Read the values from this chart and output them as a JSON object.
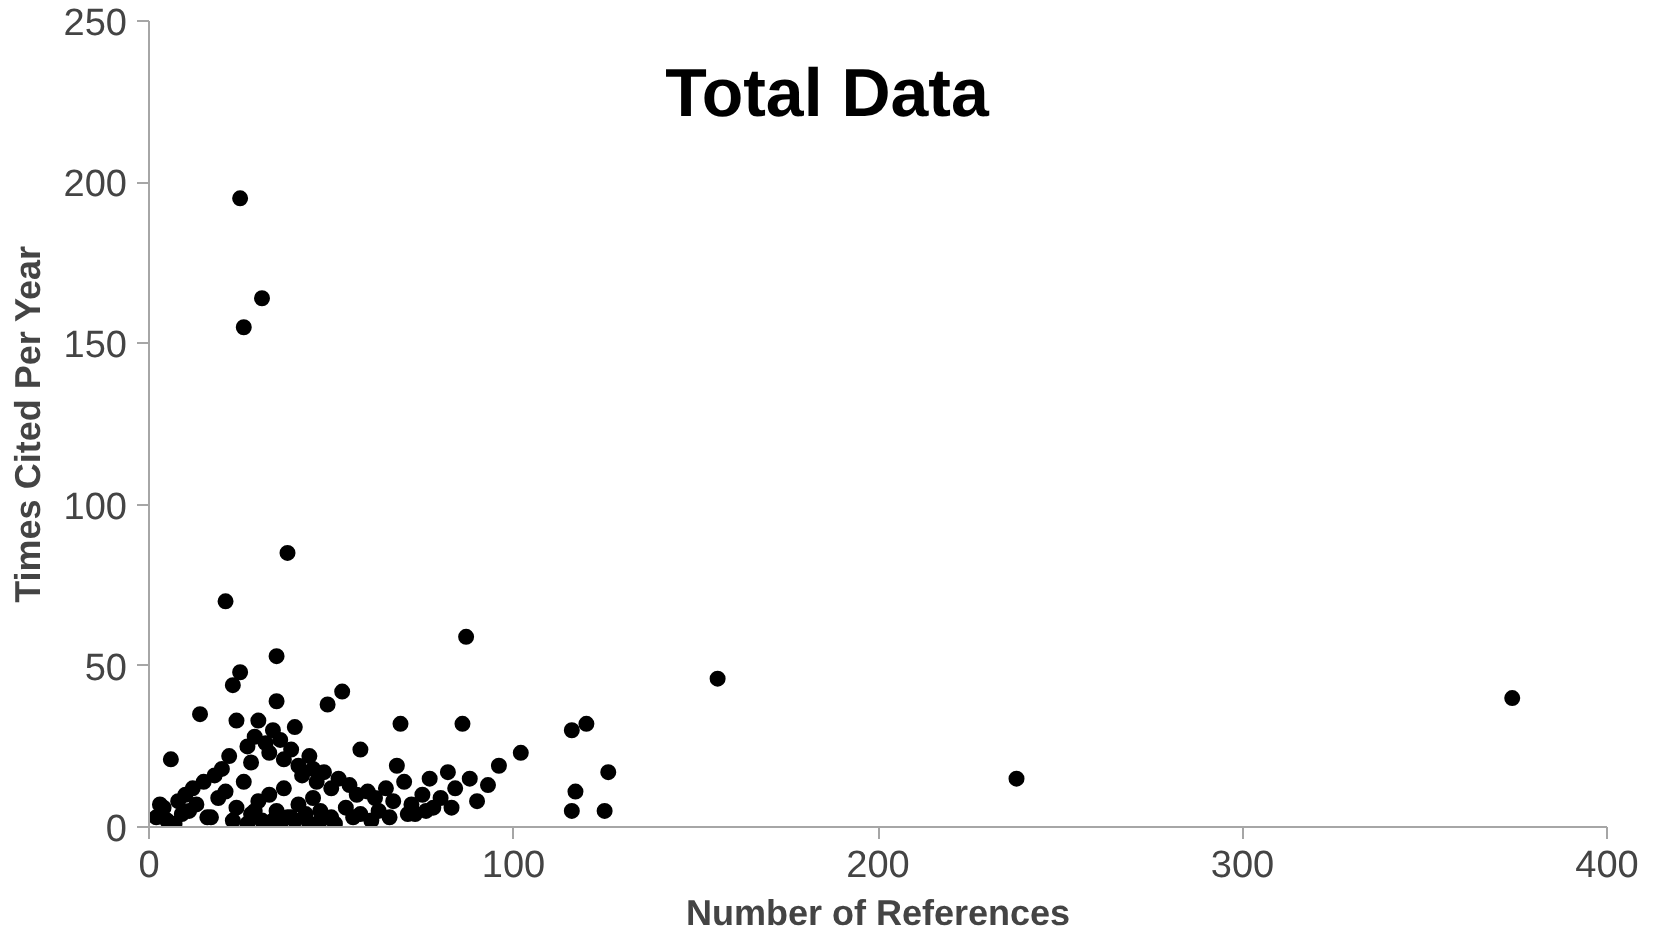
{
  "chart_data": {
    "type": "scatter",
    "title": "Total Data",
    "xlabel": "Number of References",
    "ylabel": "Times Cited Per Year",
    "x": [
      25,
      31,
      26,
      38,
      21,
      87,
      35,
      25,
      53,
      49,
      69,
      86,
      156,
      374,
      238,
      102,
      96,
      116,
      120,
      126,
      117,
      116,
      125,
      6,
      14,
      23,
      24,
      30,
      35,
      40,
      58,
      68,
      77,
      82,
      88,
      2,
      4,
      8,
      10,
      12,
      15,
      18,
      20,
      22,
      27,
      28,
      29,
      32,
      33,
      34,
      36,
      37,
      39,
      41,
      42,
      44,
      45,
      46,
      48,
      50,
      52,
      55,
      57,
      60,
      62,
      65,
      67,
      70,
      72,
      75,
      78,
      80,
      84,
      90,
      93,
      5,
      9,
      11,
      13,
      16,
      19,
      21,
      24,
      26,
      28,
      30,
      31,
      33,
      35,
      37,
      39,
      41,
      43,
      45,
      47,
      50,
      54,
      58,
      63,
      66,
      71,
      76,
      83,
      3,
      7,
      17,
      23,
      27,
      29,
      34,
      36,
      38,
      40,
      44,
      47,
      51,
      56,
      61,
      73
    ],
    "values": [
      195,
      164,
      155,
      85,
      70,
      59,
      53,
      48,
      42,
      38,
      32,
      32,
      46,
      40,
      15,
      23,
      19,
      30,
      32,
      17,
      11,
      5,
      5,
      21,
      35,
      44,
      33,
      33,
      39,
      31,
      24,
      19,
      15,
      17,
      15,
      3,
      6,
      8,
      10,
      12,
      14,
      16,
      18,
      22,
      25,
      20,
      28,
      26,
      23,
      30,
      27,
      21,
      24,
      19,
      16,
      22,
      18,
      14,
      17,
      12,
      15,
      13,
      10,
      11,
      9,
      12,
      8,
      14,
      7,
      10,
      6,
      9,
      12,
      8,
      13,
      2,
      4,
      5,
      7,
      3,
      9,
      11,
      6,
      14,
      4,
      8,
      2,
      10,
      5,
      12,
      3,
      7,
      4,
      9,
      5,
      3,
      6,
      4,
      5,
      3,
      4,
      5,
      6,
      7,
      1,
      3,
      2,
      1,
      5,
      2,
      1,
      3,
      2,
      1,
      2,
      1,
      3,
      2,
      4
    ],
    "color": "#000000",
    "marker": "circle",
    "xlim": [
      0,
      400
    ],
    "xticks": [
      0,
      100,
      200,
      300,
      400
    ],
    "ylim": [
      0,
      250
    ],
    "yticks": [
      0,
      50,
      100,
      150,
      200,
      250
    ],
    "grid": false
  }
}
